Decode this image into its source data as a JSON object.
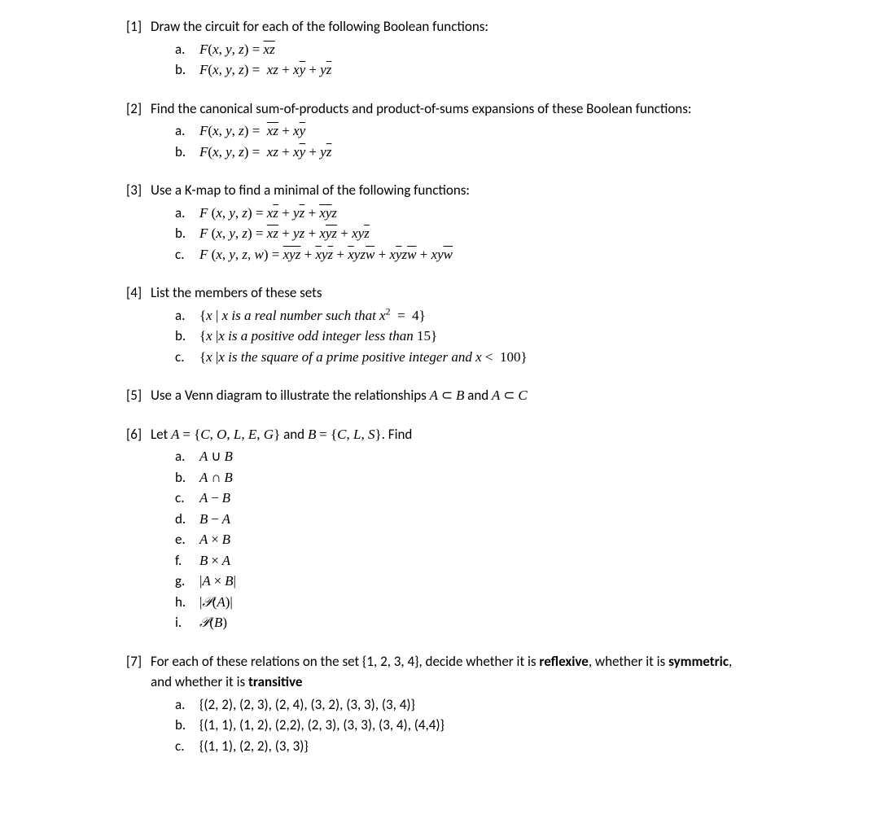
{
  "problems": [
    {
      "num": "[1]",
      "text": "Draw the circuit for each of the following Boolean functions:",
      "subs": [
        {
          "letter": "a.",
          "html": "<span class='math'>F</span><span class='mathrm'>(</span><span class='math'>x</span><span class='mathrm'>, </span><span class='math'>y</span><span class='mathrm'>, </span><span class='math'>z</span><span class='mathrm'>) = </span><span class='math overbar'>x</span><span class='math overbar'>z</span>"
        },
        {
          "letter": "b.",
          "html": "<span class='math'>F</span><span class='mathrm'>(</span><span class='math'>x</span><span class='mathrm'>, </span><span class='math'>y</span><span class='mathrm'>, </span><span class='math'>z</span><span class='mathrm'>) = &nbsp;</span><span class='math'>xz</span><span class='mathrm'> + </span><span class='math'>x</span><span class='math overbar'>y</span><span class='mathrm'> + </span><span class='math'>y</span><span class='math overbar'>z</span>"
        }
      ]
    },
    {
      "num": "[2]",
      "text": "Find the canonical sum-of-products and product-of-sums expansions of these Boolean functions:",
      "subs": [
        {
          "letter": "a.",
          "html": "<span class='math'>F</span><span class='mathrm'>(</span><span class='math'>x</span><span class='mathrm'>, </span><span class='math'>y</span><span class='mathrm'>, </span><span class='math'>z</span><span class='mathrm'>) = &nbsp;</span><span class='math overbar'>x</span><span class='math overbar'>z</span><span class='mathrm'> + </span><span class='math'>x</span><span class='math overbar'>y</span>"
        },
        {
          "letter": "b.",
          "html": "<span class='math'>F</span><span class='mathrm'>(</span><span class='math'>x</span><span class='mathrm'>, </span><span class='math'>y</span><span class='mathrm'>, </span><span class='math'>z</span><span class='mathrm'>) = &nbsp;</span><span class='math'>xz</span><span class='mathrm'> + </span><span class='math'>x</span><span class='math overbar'>y</span><span class='mathrm'> + </span><span class='math'>y</span><span class='math overbar'>z</span>"
        }
      ]
    },
    {
      "num": "[3]",
      "text": "Use a K-map to find a minimal of the following functions:",
      "subs": [
        {
          "letter": "a.",
          "html": "<span class='math'>F </span><span class='mathrm'>(</span><span class='math'>x</span><span class='mathrm'>, </span><span class='math'>y</span><span class='mathrm'>, </span><span class='math'>z</span><span class='mathrm'>) = </span><span class='math'>x</span><span class='math overbar'>z</span><span class='mathrm'> + </span><span class='math'>y</span><span class='math overbar'>z</span><span class='mathrm'> + </span><span class='math overbar'>x</span><span class='math overbar'>y</span><span class='math'>z</span>"
        },
        {
          "letter": "b.",
          "html": "<span class='math'>F </span><span class='mathrm'>(</span><span class='math'>x</span><span class='mathrm'>, </span><span class='math'>y</span><span class='mathrm'>, </span><span class='math'>z</span><span class='mathrm'>) = </span><span class='math overbar'>x</span><span class='math overbar'>z</span><span class='mathrm'> + </span><span class='math'>yz</span><span class='mathrm'> + </span><span class='math'>x</span><span class='math overbar'>y</span><span class='math overbar'>z</span><span class='mathrm'> + </span><span class='math'>xy</span><span class='math overbar'>z</span>"
        },
        {
          "letter": "c.",
          "html": "<span class='math'>F </span><span class='mathrm'>(</span><span class='math'>x</span><span class='mathrm'>, </span><span class='math'>y</span><span class='mathrm'>, </span><span class='math'>z</span><span class='mathrm'>, </span><span class='math'>w</span><span class='mathrm'>) = </span><span class='math overbar'>x</span><span class='math overbar'>y</span><span class='math overbar'>z</span><span class='mathrm'> + </span><span class='math overbar'>x</span><span class='math'>y</span><span class='math overbar'>z</span><span class='mathrm'> + </span><span class='math overbar'>x</span><span class='math'>yz</span><span class='math overbar'>w</span><span class='mathrm'> + </span><span class='math'>x</span><span class='math overbar'>y</span><span class='math'>z</span><span class='math overbar'>w</span><span class='mathrm'> + </span><span class='math'>xy</span><span class='math overbar'>w</span>"
        }
      ]
    },
    {
      "num": "[4]",
      "text": "List the members of these sets",
      "subs": [
        {
          "letter": "a.",
          "html": "<span class='mathrm'>{</span><span class='math'>x </span><span class='mathrm'>| </span><span class='math'>x is a real number such that x</span><sup class='mathrm'>2</sup><span class='mathrm'> &nbsp;= &nbsp;4}</span>"
        },
        {
          "letter": "b.",
          "html": "<span class='mathrm'>{</span><span class='math'>x </span><span class='mathrm'>|</span><span class='math'>x is a positive odd integer less than </span><span class='mathrm'>15}</span>"
        },
        {
          "letter": "c.",
          "html": "<span class='mathrm'>{</span><span class='math'>x </span><span class='mathrm'>|</span><span class='math'>x is the square of a prime positive integer and x </span><span class='mathrm'>&lt; &nbsp;100}</span>"
        }
      ]
    },
    {
      "num": "[5]",
      "textHtml": "Use a Venn diagram to illustrate the relationships <span class='math'>A</span> <span class='mathrm'>&sub;</span> <span class='math'>B</span> and <span class='math'>A</span> <span class='mathrm'>&sub;</span> <span class='math'>C</span>",
      "subs": []
    },
    {
      "num": "[6]",
      "textHtml": "Let <span class='math'>A</span> <span class='mathrm'>= {</span><span class='math'>C</span><span class='mathrm'>, </span><span class='math'>O</span><span class='mathrm'>, </span><span class='math'>L</span><span class='mathrm'>, </span><span class='math'>E</span><span class='mathrm'>, </span><span class='math'>G</span><span class='mathrm'>}</span> and <span class='math'>B</span> <span class='mathrm'>= {</span><span class='math'>C</span><span class='mathrm'>, </span><span class='math'>L</span><span class='mathrm'>, </span><span class='math'>S</span><span class='mathrm'>}</span>. Find",
      "subs": [
        {
          "letter": "a.",
          "html": "<span class='math'>A</span> <span class='mathrm'>&cup;</span> <span class='math'>B</span>"
        },
        {
          "letter": "b.",
          "html": "<span class='math'>A</span> <span class='mathrm'>&cap;</span> <span class='math'>B</span>"
        },
        {
          "letter": "c.",
          "html": "<span class='math'>A</span> <span class='mathrm'>&minus;</span> <span class='math'>B</span>"
        },
        {
          "letter": "d.",
          "html": "<span class='math'>B</span> <span class='mathrm'>&minus;</span> <span class='math'>A</span>"
        },
        {
          "letter": "e.",
          "html": "<span class='math'>A</span> <span class='mathrm'>&times;</span> <span class='math'>B</span>"
        },
        {
          "letter": "f.",
          "html": "<span class='math'>B</span> <span class='mathrm'>&times;</span> <span class='math'>A</span>"
        },
        {
          "letter": "g.",
          "html": "<span class='mathrm'>|</span><span class='math'>A</span> <span class='mathrm'>&times;</span> <span class='math'>B</span><span class='mathrm'>|</span>"
        },
        {
          "letter": "h.",
          "html": "<span class='mathrm'>|</span><span class='scriptP'>&#119979;</span><span class='mathrm'>(</span><span class='math'>A</span><span class='mathrm'>)|</span>"
        },
        {
          "letter": "i.",
          "html": "<span class='scriptP'>&#119979;</span><span class='mathrm'>(</span><span class='math'>B</span><span class='mathrm'>)</span>"
        }
      ]
    },
    {
      "num": "[7]",
      "textHtml": "For each of these relations on the set {1, 2, 3, 4}, decide whether it is <span class='bold'>reflexive</span>, whether it is <span class='bold'>symmetric</span>, and whether it is <span class='bold'>transitive</span>",
      "subs": [
        {
          "letter": "a.",
          "html": "{(2, 2), (2, 3), (2, 4), (3, 2), (3, 3), (3, 4)}"
        },
        {
          "letter": "b.",
          "html": "{(1, 1), (1, 2), (2,2), (2, 3), (3, 3), (3, 4), (4,4)}"
        },
        {
          "letter": "c.",
          "html": "{(1, 1), (2, 2), (3, 3)}"
        }
      ]
    }
  ]
}
